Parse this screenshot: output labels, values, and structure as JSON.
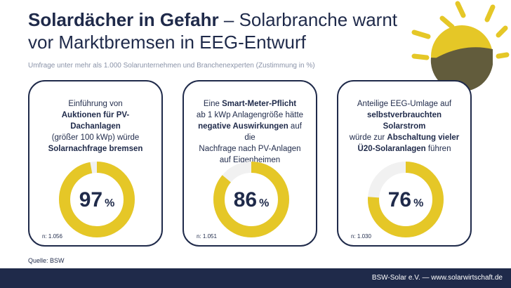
{
  "title": {
    "bold": "Solardächer in Gefahr",
    "rest_line1": " – Solarbranche warnt",
    "line2": "vor Marktbremsen in EEG-Entwurf"
  },
  "subtitle": "Umfrage unter mehr als 1.000 Solarunternehmen und Branchenexperten (Zustimmung in %)",
  "source": "Quelle: BSW",
  "footer": "BSW-Solar e.V. — www.solarwirtschaft.de",
  "colors": {
    "navy": "#1f2a4a",
    "yellow": "#e5c727",
    "track": "#ffffff",
    "olive": "#625c3c"
  },
  "chart_data": {
    "type": "pie",
    "unit": "%",
    "items": [
      {
        "text": [
          {
            "t": "Einführung von",
            "b": false
          },
          {
            "t": "Auktionen für PV-Dachanlagen",
            "b": true
          },
          {
            "t": "(größer 100 kWp) würde",
            "b": false
          },
          {
            "t": "Solarnachfrage bremsen",
            "b": true
          }
        ],
        "value": 97,
        "n": "n: 1.056"
      },
      {
        "text": [
          {
            "t": "Eine ",
            "b": false
          },
          {
            "t": "Smart-Meter-Pflicht",
            "b": true
          },
          {
            "t": "ab 1 kWp Anlagengröße hätte",
            "b": false
          },
          {
            "t": "negative Auswirkungen",
            "b": true
          },
          {
            "t": " auf die",
            "b": false
          },
          {
            "t": "Nachfrage nach PV-Anlagen",
            "b": false
          },
          {
            "t": "auf Eigenheimen",
            "b": false
          }
        ],
        "value": 86,
        "n": "n: 1.051"
      },
      {
        "text": [
          {
            "t": "Anteilige EEG-Umlage auf",
            "b": false
          },
          {
            "t": "selbstverbrauchten Solarstrom",
            "b": true
          },
          {
            "t": "würde zur ",
            "b": false
          },
          {
            "t": "Abschaltung vieler",
            "b": true
          },
          {
            "t": "Ü20-Solaranlagen",
            "b": true
          },
          {
            "t": " führen",
            "b": false
          }
        ],
        "value": 76,
        "n": "n: 1.030"
      }
    ]
  }
}
